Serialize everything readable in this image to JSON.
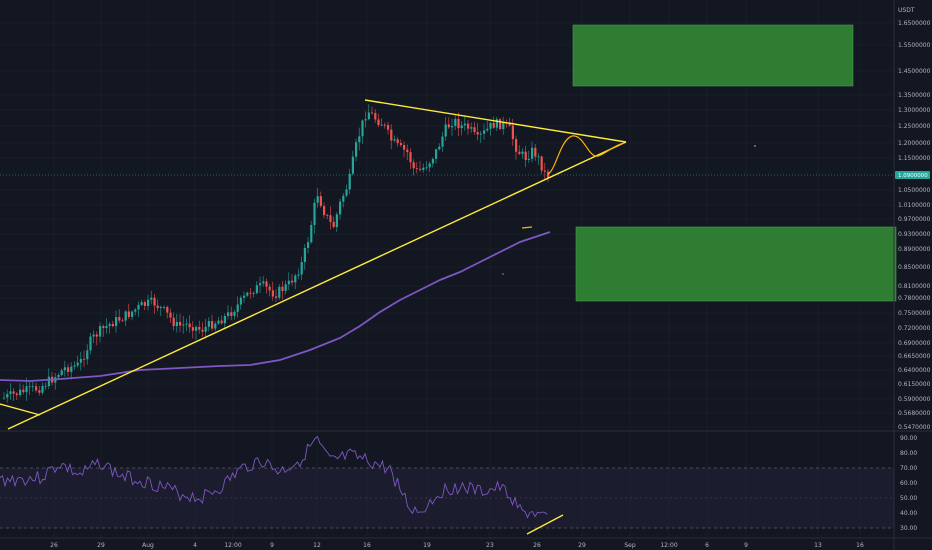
{
  "chart_data": [
    {
      "type": "candlestick",
      "title": "",
      "currency_label": "USDT",
      "current_price_label": "1.0900000",
      "y_ticks": [
        "1.6500000",
        "1.5500000",
        "1.4500000",
        "1.3500000",
        "1.3000000",
        "1.2500000",
        "1.2000000",
        "1.1500000",
        "1.0500000",
        "1.0100000",
        "0.9700000",
        "0.9300000",
        "0.8900000",
        "0.8500000",
        "0.8100000",
        "0.7800000",
        "0.7500000",
        "0.7200000",
        "0.6900000",
        "0.6650000",
        "0.6400000",
        "0.6150000",
        "0.5900000",
        "0.5680000",
        "0.5470000"
      ],
      "x_ticks": [
        "26",
        "29",
        "Aug",
        "4",
        "12:00",
        "9",
        "12",
        "16",
        "19",
        "23",
        "26",
        "29",
        "Sep",
        "12:00",
        "6",
        "9",
        "13",
        "16"
      ],
      "ylim": [
        0.547,
        1.75
      ],
      "ma_series": {
        "name": "",
        "color": "#7e57c2"
      },
      "annotations": {
        "zones": [
          {
            "label": "",
            "color": "#2e7d32",
            "range": [
              1.38,
              1.62
            ]
          },
          {
            "label": "",
            "color": "#2e7d32",
            "range": [
              0.78,
              0.95
            ]
          }
        ],
        "trendlines": [
          {
            "color": "#ffeb3b",
            "kind": "support"
          },
          {
            "color": "#ffeb3b",
            "kind": "resistance"
          }
        ]
      },
      "colors": {
        "up": "#26a69a",
        "down": "#ef5350",
        "background": "#131722",
        "grid": "#1e222d"
      }
    },
    {
      "type": "line",
      "title": "",
      "y_ticks": [
        "90.00",
        "80.00",
        "70.00",
        "60.00",
        "50.00",
        "40.00",
        "30.00"
      ],
      "ylim": [
        27,
        92
      ],
      "bands": {
        "upper": 70,
        "middle": 50,
        "lower": 30
      },
      "series": [
        {
          "name": "",
          "color": "#7e57c2"
        }
      ]
    }
  ]
}
